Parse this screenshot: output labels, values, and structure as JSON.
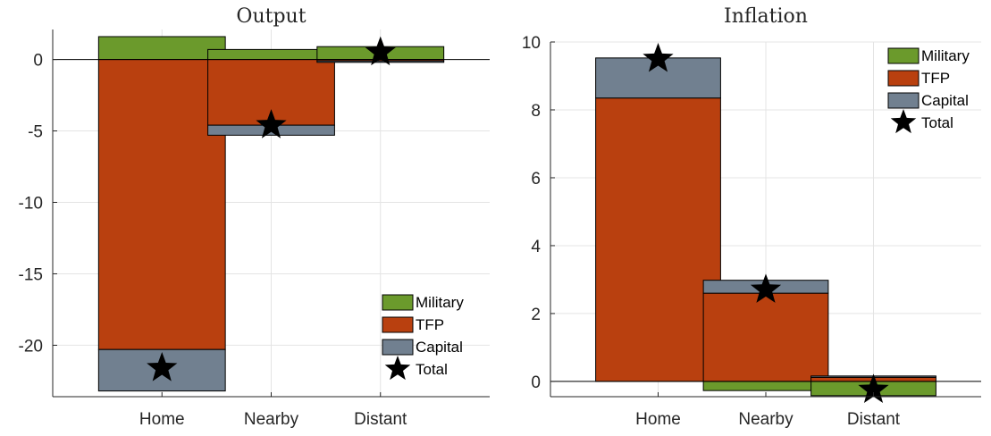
{
  "colors": {
    "military": "#6b9a2c",
    "tfp": "#b9400f",
    "capital": "#718090",
    "total": "#000000",
    "grid": "#e4e4e4",
    "axis": "#262626"
  },
  "chart_data": [
    {
      "type": "bar",
      "stacked": true,
      "title": "Output",
      "categories": [
        "Home",
        "Nearby",
        "Distant"
      ],
      "ylim": [
        -23.6,
        2.1
      ],
      "yticks": [
        0,
        -5,
        -10,
        -15,
        -20
      ],
      "ytick_labels": [
        "0",
        "-5",
        "-10",
        "-15",
        "-20"
      ],
      "grid": true,
      "legend_position": "bottom-right",
      "series": [
        {
          "name": "Military",
          "values": [
            1.6,
            0.7,
            0.9
          ]
        },
        {
          "name": "TFP",
          "values": [
            -20.3,
            -4.6,
            -0.1
          ]
        },
        {
          "name": "Capital",
          "values": [
            -2.9,
            -0.7,
            -0.1
          ]
        }
      ],
      "total": {
        "name": "Total",
        "values": [
          -21.6,
          -4.6,
          0.5
        ]
      }
    },
    {
      "type": "bar",
      "stacked": true,
      "title": "Inflation",
      "categories": [
        "Home",
        "Nearby",
        "Distant"
      ],
      "ylim": [
        -0.45,
        10
      ],
      "yticks": [
        0,
        2,
        4,
        6,
        8,
        10
      ],
      "ytick_labels": [
        "0",
        "2",
        "4",
        "6",
        "8",
        "10"
      ],
      "grid": true,
      "legend_position": "top-right",
      "series": [
        {
          "name": "Military",
          "values": [
            0.0,
            -0.27,
            -0.42
          ]
        },
        {
          "name": "TFP",
          "values": [
            8.35,
            2.6,
            0.12
          ]
        },
        {
          "name": "Capital",
          "values": [
            1.18,
            0.38,
            0.04
          ]
        }
      ],
      "total": {
        "name": "Total",
        "values": [
          9.5,
          2.7,
          -0.25
        ]
      }
    }
  ]
}
